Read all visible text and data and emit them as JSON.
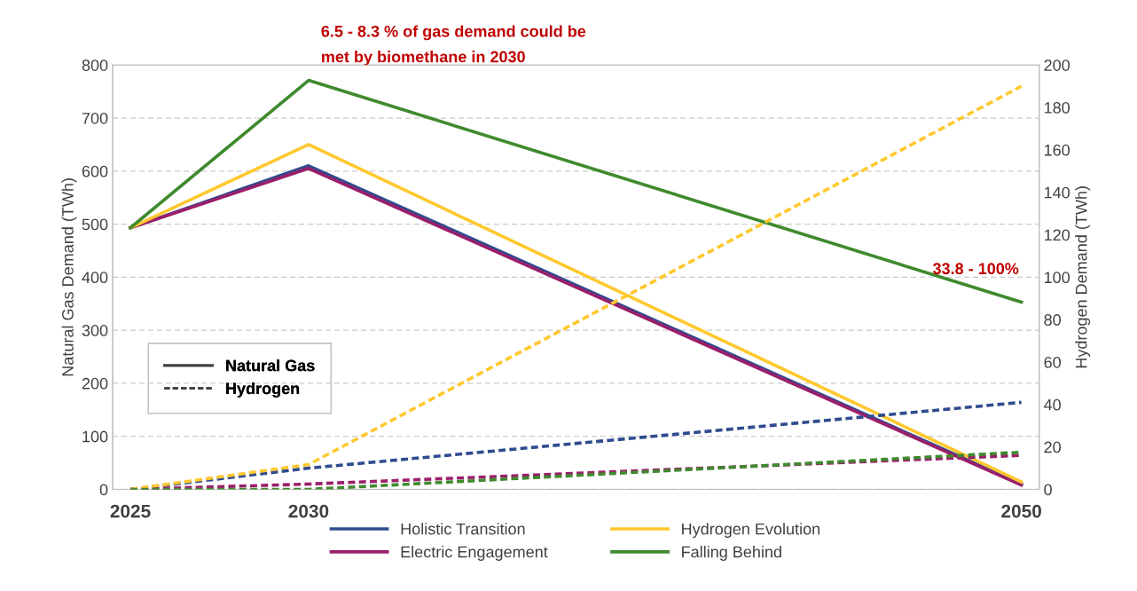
{
  "chart_data": {
    "type": "line",
    "ylabel": "Natural Gas Demand (TWh)",
    "y2label": "Hydrogen Demand (TWh)",
    "x": [
      2025,
      2030,
      2050
    ],
    "xlim": [
      2024.5,
      2050.5
    ],
    "xticks": [
      2025,
      2030,
      2050
    ],
    "ylim": [
      0,
      800
    ],
    "yticks": [
      0,
      100,
      200,
      300,
      400,
      500,
      600,
      700,
      800
    ],
    "y2lim": [
      0,
      200
    ],
    "y2ticks": [
      0,
      20,
      40,
      60,
      80,
      100,
      120,
      140,
      160,
      180,
      200
    ],
    "grid": "y",
    "legend": "bottom",
    "marker": "none",
    "series": [
      {
        "name": "Holistic Transition",
        "color": "#2f4b8f",
        "values": [
          493,
          610,
          10
        ],
        "line_style": "solid"
      },
      {
        "name": "Electric Engagement",
        "color": "#9b1f6a",
        "values": [
          493,
          605,
          8
        ],
        "line_style": "solid"
      },
      {
        "name": "Hydrogen Evolution",
        "color": "#ffc82e",
        "values": [
          493,
          650,
          14
        ],
        "line_style": "solid"
      },
      {
        "name": "Falling Behind",
        "color": "#3f8a2e",
        "values": [
          493,
          771,
          353
        ],
        "line_style": "solid"
      },
      {
        "color": "#2f4b8f",
        "values": [
          0,
          10,
          41
        ],
        "axis": "y2",
        "line_style": "dashed"
      },
      {
        "color": "#9b1f6a",
        "values": [
          0,
          2.5,
          16
        ],
        "axis": "y2",
        "line_style": "dashed"
      },
      {
        "color": "#ffc82e",
        "values": [
          0,
          11.7,
          190
        ],
        "axis": "y2",
        "line_style": "dashed"
      },
      {
        "color": "#3f8a2e",
        "values": [
          0,
          0,
          17.5
        ],
        "axis": "y2",
        "line_style": "dashed"
      }
    ],
    "annotations": [
      "Natural Gas",
      "Hydrogen",
      {
        "text": "6.5 - 8.3 % of gas demand could be\nmet by biomethane in 2030",
        "x": 2030,
        "y": 771
      },
      {
        "text": "33.8 - 100%",
        "x": 2050,
        "y": 353
      }
    ]
  }
}
